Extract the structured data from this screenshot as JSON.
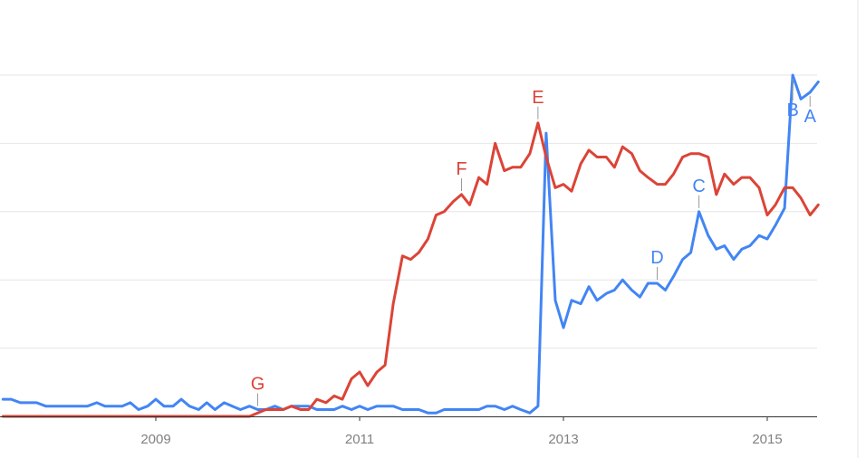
{
  "chart_data": {
    "type": "line",
    "title": "",
    "xlabel": "",
    "ylabel": "",
    "grid": true,
    "legend": "none",
    "x_tick_labels": [
      {
        "x": 2009,
        "label": "2009"
      },
      {
        "x": 2011,
        "label": "2011"
      },
      {
        "x": 2013,
        "label": "2013"
      },
      {
        "x": 2015,
        "label": "2015"
      }
    ],
    "xlim": [
      2007.5,
      2015.5
    ],
    "ylim": [
      0,
      100
    ],
    "colors": {
      "blue": "#4285f4",
      "red": "#db4437"
    },
    "series": [
      {
        "color": "#4285f4",
        "points": [
          [
            2007.5,
            5
          ],
          [
            2007.58,
            5
          ],
          [
            2007.67,
            4
          ],
          [
            2007.75,
            4
          ],
          [
            2007.83,
            4
          ],
          [
            2007.92,
            3
          ],
          [
            2008.0,
            3
          ],
          [
            2008.08,
            3
          ],
          [
            2008.17,
            3
          ],
          [
            2008.25,
            3
          ],
          [
            2008.33,
            3
          ],
          [
            2008.42,
            4
          ],
          [
            2008.5,
            3
          ],
          [
            2008.58,
            3
          ],
          [
            2008.67,
            3
          ],
          [
            2008.75,
            4
          ],
          [
            2008.83,
            2
          ],
          [
            2008.92,
            3
          ],
          [
            2009.0,
            5
          ],
          [
            2009.08,
            3
          ],
          [
            2009.17,
            3
          ],
          [
            2009.25,
            5
          ],
          [
            2009.33,
            3
          ],
          [
            2009.42,
            2
          ],
          [
            2009.5,
            4
          ],
          [
            2009.58,
            2
          ],
          [
            2009.67,
            4
          ],
          [
            2009.75,
            3
          ],
          [
            2009.83,
            2
          ],
          [
            2009.92,
            3
          ],
          [
            2010.0,
            2
          ],
          [
            2010.08,
            2
          ],
          [
            2010.17,
            3
          ],
          [
            2010.25,
            2
          ],
          [
            2010.33,
            3
          ],
          [
            2010.42,
            3
          ],
          [
            2010.5,
            3
          ],
          [
            2010.58,
            2
          ],
          [
            2010.67,
            2
          ],
          [
            2010.75,
            2
          ],
          [
            2010.83,
            3
          ],
          [
            2010.92,
            2
          ],
          [
            2011.0,
            3
          ],
          [
            2011.08,
            2
          ],
          [
            2011.17,
            3
          ],
          [
            2011.25,
            3
          ],
          [
            2011.33,
            3
          ],
          [
            2011.42,
            2
          ],
          [
            2011.5,
            2
          ],
          [
            2011.58,
            2
          ],
          [
            2011.67,
            1
          ],
          [
            2011.75,
            1
          ],
          [
            2011.83,
            2
          ],
          [
            2011.92,
            2
          ],
          [
            2012.0,
            2
          ],
          [
            2012.08,
            2
          ],
          [
            2012.17,
            2
          ],
          [
            2012.25,
            3
          ],
          [
            2012.33,
            3
          ],
          [
            2012.42,
            2
          ],
          [
            2012.5,
            3
          ],
          [
            2012.58,
            2
          ],
          [
            2012.67,
            1
          ],
          [
            2012.75,
            3
          ],
          [
            2012.83,
            83
          ],
          [
            2012.92,
            34
          ],
          [
            2013.0,
            26
          ],
          [
            2013.08,
            34
          ],
          [
            2013.17,
            33
          ],
          [
            2013.25,
            38
          ],
          [
            2013.33,
            34
          ],
          [
            2013.42,
            36
          ],
          [
            2013.5,
            37
          ],
          [
            2013.58,
            40
          ],
          [
            2013.67,
            37
          ],
          [
            2013.75,
            35
          ],
          [
            2013.83,
            39
          ],
          [
            2013.92,
            39
          ],
          [
            2014.0,
            37
          ],
          [
            2014.08,
            41
          ],
          [
            2014.17,
            46
          ],
          [
            2014.25,
            48
          ],
          [
            2014.33,
            60
          ],
          [
            2014.42,
            53
          ],
          [
            2014.5,
            49
          ],
          [
            2014.58,
            50
          ],
          [
            2014.67,
            46
          ],
          [
            2014.75,
            49
          ],
          [
            2014.83,
            50
          ],
          [
            2014.92,
            53
          ],
          [
            2015.0,
            52
          ],
          [
            2015.08,
            56
          ],
          [
            2015.17,
            61
          ],
          [
            2015.25,
            100
          ],
          [
            2015.33,
            93
          ],
          [
            2015.42,
            95
          ],
          [
            2015.5,
            98
          ]
        ]
      },
      {
        "color": "#db4437",
        "points": [
          [
            2007.5,
            0
          ],
          [
            2007.67,
            0
          ],
          [
            2007.83,
            0
          ],
          [
            2008.0,
            0
          ],
          [
            2008.17,
            0
          ],
          [
            2008.33,
            0
          ],
          [
            2008.5,
            0
          ],
          [
            2008.67,
            0
          ],
          [
            2008.83,
            0
          ],
          [
            2009.0,
            0
          ],
          [
            2009.17,
            0
          ],
          [
            2009.33,
            0
          ],
          [
            2009.5,
            0
          ],
          [
            2009.67,
            0
          ],
          [
            2009.83,
            0
          ],
          [
            2009.92,
            0
          ],
          [
            2010.0,
            1
          ],
          [
            2010.08,
            2
          ],
          [
            2010.17,
            2
          ],
          [
            2010.25,
            2
          ],
          [
            2010.33,
            3
          ],
          [
            2010.42,
            2
          ],
          [
            2010.5,
            2
          ],
          [
            2010.58,
            5
          ],
          [
            2010.67,
            4
          ],
          [
            2010.75,
            6
          ],
          [
            2010.83,
            5
          ],
          [
            2010.92,
            11
          ],
          [
            2011.0,
            13
          ],
          [
            2011.08,
            9
          ],
          [
            2011.17,
            13
          ],
          [
            2011.25,
            15
          ],
          [
            2011.33,
            33
          ],
          [
            2011.42,
            47
          ],
          [
            2011.5,
            46
          ],
          [
            2011.58,
            48
          ],
          [
            2011.67,
            52
          ],
          [
            2011.75,
            59
          ],
          [
            2011.83,
            60
          ],
          [
            2011.92,
            63
          ],
          [
            2012.0,
            65
          ],
          [
            2012.08,
            62
          ],
          [
            2012.17,
            70
          ],
          [
            2012.25,
            68
          ],
          [
            2012.33,
            80
          ],
          [
            2012.42,
            72
          ],
          [
            2012.5,
            73
          ],
          [
            2012.58,
            73
          ],
          [
            2012.67,
            77
          ],
          [
            2012.75,
            86
          ],
          [
            2012.83,
            76
          ],
          [
            2012.92,
            67
          ],
          [
            2013.0,
            68
          ],
          [
            2013.08,
            66
          ],
          [
            2013.17,
            74
          ],
          [
            2013.25,
            78
          ],
          [
            2013.33,
            76
          ],
          [
            2013.42,
            76
          ],
          [
            2013.5,
            73
          ],
          [
            2013.58,
            79
          ],
          [
            2013.67,
            77
          ],
          [
            2013.75,
            72
          ],
          [
            2013.83,
            70
          ],
          [
            2013.92,
            68
          ],
          [
            2014.0,
            68
          ],
          [
            2014.08,
            71
          ],
          [
            2014.17,
            76
          ],
          [
            2014.25,
            77
          ],
          [
            2014.33,
            77
          ],
          [
            2014.42,
            76
          ],
          [
            2014.5,
            65
          ],
          [
            2014.58,
            71
          ],
          [
            2014.67,
            68
          ],
          [
            2014.75,
            70
          ],
          [
            2014.83,
            70
          ],
          [
            2014.92,
            67
          ],
          [
            2015.0,
            59
          ],
          [
            2015.08,
            62
          ],
          [
            2015.17,
            67
          ],
          [
            2015.25,
            67
          ],
          [
            2015.33,
            64
          ],
          [
            2015.42,
            59
          ],
          [
            2015.5,
            62
          ]
        ]
      }
    ],
    "annotations": [
      {
        "label": "A",
        "color": "#4285f4",
        "x": 2015.42,
        "y": 95,
        "dy": 14
      },
      {
        "label": "B",
        "color": "#4285f4",
        "x": 2015.25,
        "y": 100,
        "dy": 26
      },
      {
        "label": "C",
        "color": "#4285f4",
        "x": 2014.33,
        "y": 60,
        "dy": -14
      },
      {
        "label": "D",
        "color": "#4285f4",
        "x": 2013.92,
        "y": 39,
        "dy": -14
      },
      {
        "label": "E",
        "color": "#db4437",
        "x": 2012.75,
        "y": 86,
        "dy": -14
      },
      {
        "label": "F",
        "color": "#db4437",
        "x": 2012.0,
        "y": 65,
        "dy": -14
      },
      {
        "label": "G",
        "color": "#db4437",
        "x": 2010.0,
        "y": 2,
        "dy": -14
      }
    ]
  }
}
